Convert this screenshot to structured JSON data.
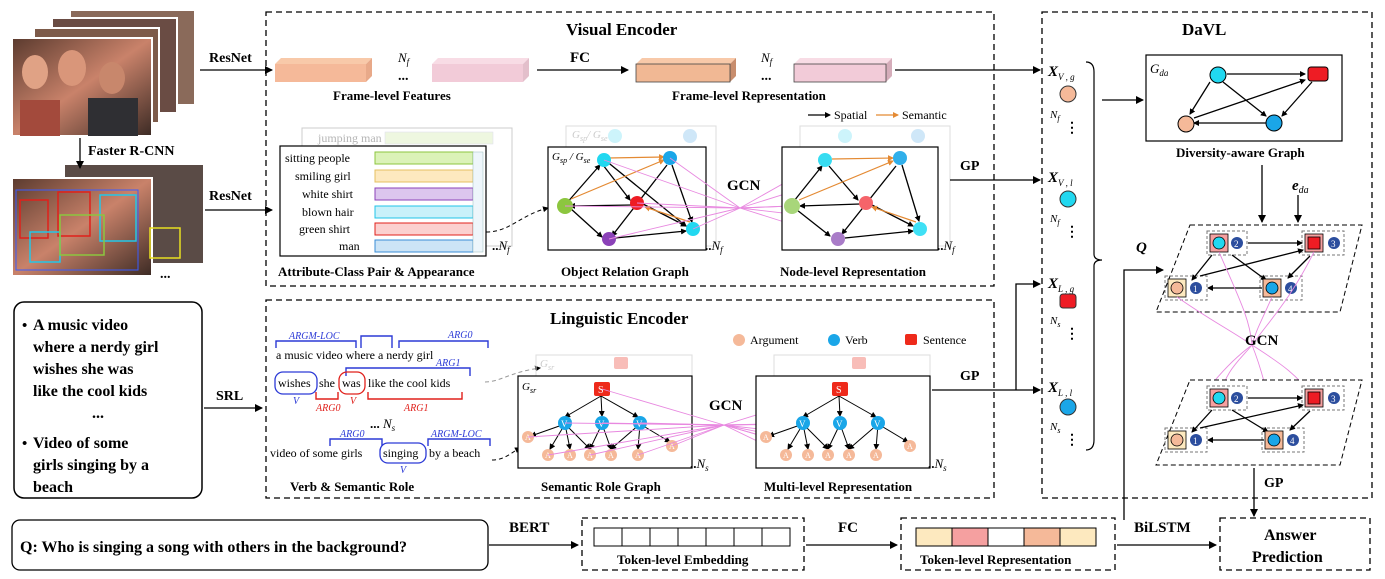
{
  "diagram": {
    "video": {
      "detector": "Faster R-CNN",
      "ellipsis": "..."
    },
    "edges": {
      "resnet_top": "ResNet",
      "resnet_bottom": "ResNet",
      "srl": "SRL",
      "bert": "BERT",
      "fc_bottom": "FC",
      "bilstm": "BiLSTM"
    },
    "captions": {
      "item1": [
        "A music video",
        "where a nerdy girl",
        "wishes she was",
        "like the cool kids"
      ],
      "dots": "...",
      "item2": [
        "Video of some",
        "girls singing by a",
        "beach"
      ]
    },
    "visual_encoder": {
      "title": "Visual Encoder",
      "nf": "N_f",
      "fc": "FC",
      "frame_features": "Frame-level Features",
      "frame_representation": "Frame-level Representation",
      "legend_spatial": "Spatial",
      "legend_semantic": "Semantic",
      "ghost_label": "jumping man",
      "attributes": [
        "sitting people",
        "smiling girl",
        "white shirt",
        "blown hair",
        "green shirt",
        "man"
      ],
      "attr_caption": "Attribute-Class Pair & Appearance",
      "graph_caption": "Object Relation Graph",
      "graph_label": "G_sp / G_se",
      "gcn": "GCN",
      "node_caption": "Node-level Representation",
      "gp": "GP"
    },
    "linguistic_encoder": {
      "title": "Linguistic Encoder",
      "ns": "N_s",
      "legend": [
        "Argument",
        "Verb",
        "Sentence"
      ],
      "srl_tags": [
        "ARGM-LOC",
        "ARG0",
        "ARG1",
        "V",
        "ARG0",
        "V",
        "ARG1",
        "ARG0",
        "ARGM-LOC",
        "V"
      ],
      "sentence1": [
        "a music video where a nerdy girl",
        "wishes",
        "she",
        "was",
        "like the cool kids"
      ],
      "sentence2": [
        "video of some girls",
        "singing",
        "by a beach"
      ],
      "verb_caption": "Verb & Semantic Role",
      "graph_caption": "Semantic Role Graph",
      "graph_label": "G_sr",
      "gcn": "GCN",
      "multi_caption": "Multi-level Representation",
      "gp": "GP",
      "node_S": "S",
      "node_V": "V",
      "node_A": "A"
    },
    "features": {
      "xvg": "X_V,g",
      "xvl": "X_V,l",
      "xlg": "X_L,g",
      "xll": "X_L,l",
      "nf": "N_f",
      "ns": "N_s"
    },
    "davl": {
      "title": "DaVL",
      "graph_label": "G_da",
      "graph_caption": "Diversity-aware Graph",
      "e_da": "e_da",
      "q": "Q",
      "gcn": "GCN",
      "gp": "GP",
      "node_numbers": [
        "1",
        "2",
        "3",
        "4"
      ]
    },
    "question": "Q:  Who is singing a song with others in the background?",
    "token_embedding": "Token-level  Embedding",
    "token_representation": "Token-level  Representation",
    "answer": [
      "Answer",
      "Prediction"
    ],
    "colors": {
      "node_orange": "#f5b999",
      "node_cyan": "#21d8f0",
      "node_red": "#ee1c24",
      "node_blue": "#1aa6e8",
      "node_purple": "#8b42b8",
      "node_green": "#8cc63f",
      "argument": "#f5b999",
      "verb": "#1aa6e8",
      "sentence": "#ee2a1b"
    }
  }
}
